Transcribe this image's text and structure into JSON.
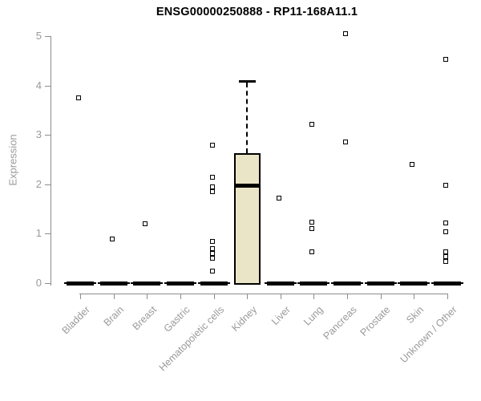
{
  "chart_data": {
    "type": "box",
    "title": "ENSG00000250888 - RP11-168A11.1",
    "ylabel": "Expression",
    "xlabel": "",
    "ylim": [
      0,
      5
    ],
    "yticks": [
      0,
      1,
      2,
      3,
      4,
      5
    ],
    "grid": false,
    "legend": null,
    "categories": [
      "Bladder",
      "Brain",
      "Breast",
      "Gastric",
      "Hematopoietic cells",
      "Kidney",
      "Liver",
      "Lung",
      "Pancreas",
      "Prostate",
      "Skin",
      "Unknown / Other"
    ],
    "boxes": [
      {
        "category": "Bladder",
        "q1": 0,
        "median": 0,
        "q3": 0,
        "whisker_low": 0,
        "whisker_high": 0,
        "outliers": [
          3.75
        ]
      },
      {
        "category": "Brain",
        "q1": 0,
        "median": 0,
        "q3": 0,
        "whisker_low": 0,
        "whisker_high": 0,
        "outliers": [
          0.9
        ]
      },
      {
        "category": "Breast",
        "q1": 0,
        "median": 0,
        "q3": 0,
        "whisker_low": 0,
        "whisker_high": 0,
        "outliers": [
          1.2
        ]
      },
      {
        "category": "Gastric",
        "q1": 0,
        "median": 0,
        "q3": 0,
        "whisker_low": 0,
        "whisker_high": 0,
        "outliers": []
      },
      {
        "category": "Hematopoietic cells",
        "q1": 0,
        "median": 0,
        "q3": 0,
        "whisker_low": 0,
        "whisker_high": 0,
        "outliers": [
          2.8,
          2.15,
          1.95,
          1.85,
          0.85,
          0.7,
          0.6,
          0.5,
          0.25
        ]
      },
      {
        "category": "Kidney",
        "q1": 0,
        "median": 1.97,
        "q3": 2.63,
        "whisker_low": 0,
        "whisker_high": 4.09,
        "outliers": []
      },
      {
        "category": "Liver",
        "q1": 0,
        "median": 0,
        "q3": 0,
        "whisker_low": 0,
        "whisker_high": 0,
        "outliers": [
          1.72
        ]
      },
      {
        "category": "Lung",
        "q1": 0,
        "median": 0,
        "q3": 0,
        "whisker_low": 0,
        "whisker_high": 0,
        "outliers": [
          3.22,
          1.23,
          1.1,
          0.63
        ]
      },
      {
        "category": "Pancreas",
        "q1": 0,
        "median": 0,
        "q3": 0,
        "whisker_low": 0,
        "whisker_high": 0,
        "outliers": [
          5.05,
          2.86
        ]
      },
      {
        "category": "Prostate",
        "q1": 0,
        "median": 0,
        "q3": 0,
        "whisker_low": 0,
        "whisker_high": 0,
        "outliers": []
      },
      {
        "category": "Skin",
        "q1": 0,
        "median": 0,
        "q3": 0,
        "whisker_low": 0,
        "whisker_high": 0,
        "outliers": [
          2.4
        ]
      },
      {
        "category": "Unknown / Other",
        "q1": 0,
        "median": 0,
        "q3": 0,
        "whisker_low": 0,
        "whisker_high": 0,
        "outliers": [
          4.53,
          1.98,
          1.22,
          1.04,
          0.63,
          0.54,
          0.44
        ]
      }
    ],
    "colors": {
      "box_fill": "#ebe5c7",
      "box_border": "#000000",
      "median": "#000000",
      "axis": "#8c8c8c",
      "tick_text": "#9a9a9a",
      "title_text": "#000000"
    }
  }
}
